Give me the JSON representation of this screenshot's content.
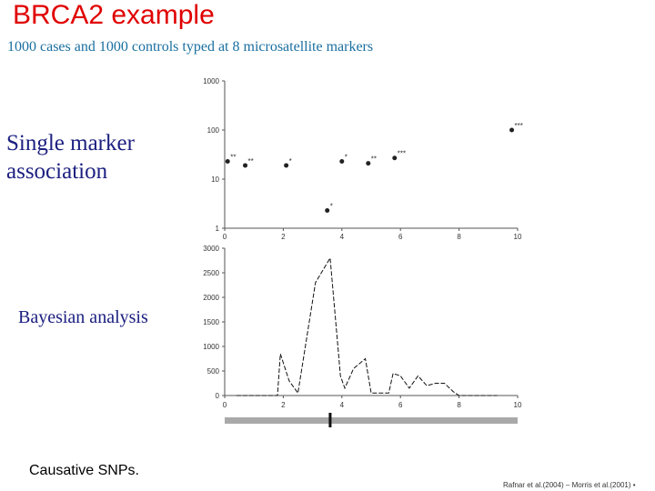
{
  "slide": {
    "title": "BRCA2 example",
    "subtitle": "1000 cases and 1000 controls typed at 8 microsatellite markers",
    "label_single_marker": "Single marker association",
    "label_bayesian": "Bayesian analysis",
    "label_causative": "Causative SNPs.",
    "reference": "Rafnar et al.(2004) – Morris et al.(2001) •"
  },
  "chart_data": [
    {
      "type": "scatter",
      "yscale": "log",
      "ylim": [
        1,
        1000
      ],
      "xlim": [
        0,
        10
      ],
      "y_ticks": [
        "1000",
        "100",
        "10",
        "1"
      ],
      "x_ticks": [
        "0",
        "2",
        "4",
        "6",
        "8",
        "10"
      ],
      "points": [
        {
          "x": 0.1,
          "y": 23,
          "mark": "**"
        },
        {
          "x": 0.7,
          "y": 19,
          "mark": "**"
        },
        {
          "x": 2.1,
          "y": 19,
          "mark": "*"
        },
        {
          "x": 3.5,
          "y": 2.3,
          "mark": "*"
        },
        {
          "x": 4.0,
          "y": 23,
          "mark": "*"
        },
        {
          "x": 4.9,
          "y": 21,
          "mark": "**"
        },
        {
          "x": 5.8,
          "y": 27,
          "mark": "***"
        },
        {
          "x": 9.8,
          "y": 100,
          "mark": "***"
        }
      ]
    },
    {
      "type": "line",
      "ylim": [
        0,
        3000
      ],
      "xlim": [
        0,
        10
      ],
      "y_ticks": [
        "3000",
        "2500",
        "2000",
        "1500",
        "1000",
        "500",
        "0"
      ],
      "x_ticks": [
        "0",
        "2",
        "4",
        "6",
        "8",
        "10"
      ],
      "x": [
        0.4,
        1.8,
        1.9,
        2.2,
        2.5,
        3.1,
        3.6,
        3.9,
        3.95,
        4.1,
        4.4,
        4.8,
        5.0,
        5.2,
        5.6,
        5.75,
        6.0,
        6.3,
        6.6,
        6.9,
        7.2,
        7.5,
        7.8,
        8.0,
        9.3
      ],
      "y": [
        0,
        0,
        850,
        300,
        50,
        2300,
        2800,
        750,
        400,
        150,
        550,
        750,
        50,
        50,
        50,
        450,
        400,
        150,
        400,
        200,
        250,
        250,
        80,
        0,
        0
      ]
    },
    {
      "type": "bar",
      "xlim": [
        0,
        10
      ],
      "marker_x": 3.6
    }
  ]
}
